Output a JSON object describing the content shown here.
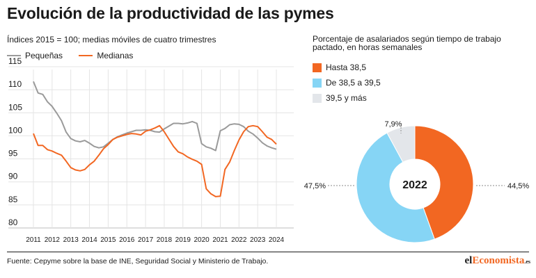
{
  "title": "Evolución de la productividad de las pymes",
  "source": "Fuente: Cepyme sobre la base de INE, Seguridad Social y Ministerio de Trabajo.",
  "logo": {
    "prefix": "el",
    "middle": "Economista",
    "suffix": ".es"
  },
  "colors": {
    "orange": "#f26722",
    "gray": "#9a9a9a",
    "lightblue": "#86d5f5",
    "lightgray": "#e3e6ea"
  },
  "chart_data": [
    {
      "type": "line",
      "subtitle": "Índices 2015 = 100; medias móviles de cuatro trimestres",
      "ylim": [
        80,
        115
      ],
      "yticks": [
        80,
        85,
        90,
        95,
        100,
        105,
        110,
        115
      ],
      "xticks": [
        "2011",
        "2012",
        "2013",
        "2014",
        "2015",
        "2016",
        "2017",
        "2018",
        "2019",
        "2020",
        "2021",
        "2022",
        "2023",
        "2024"
      ],
      "grid": true,
      "legend": "top-left",
      "series": [
        {
          "name": "Pequeñas",
          "color": "#9a9a9a",
          "x": [
            2011,
            2011.25,
            2011.5,
            2011.75,
            2012,
            2012.25,
            2012.5,
            2012.75,
            2013,
            2013.25,
            2013.5,
            2013.75,
            2014,
            2014.25,
            2014.5,
            2014.75,
            2015,
            2015.25,
            2015.5,
            2015.75,
            2016,
            2016.25,
            2016.5,
            2016.75,
            2017,
            2017.25,
            2017.5,
            2017.75,
            2018,
            2018.25,
            2018.5,
            2018.75,
            2019,
            2019.25,
            2019.5,
            2019.75,
            2020,
            2020.25,
            2020.5,
            2020.75,
            2021,
            2021.25,
            2021.5,
            2021.75,
            2022,
            2022.25,
            2022.5,
            2022.75,
            2023,
            2023.25,
            2023.5,
            2023.75,
            2024
          ],
          "values": [
            111.8,
            109.3,
            109.0,
            107.4,
            106.4,
            104.9,
            103.3,
            100.8,
            99.4,
            98.9,
            98.7,
            99.0,
            98.4,
            97.7,
            97.4,
            97.6,
            98.4,
            99.2,
            99.8,
            100.2,
            100.6,
            100.9,
            101.2,
            101.2,
            101.3,
            101.2,
            100.9,
            100.8,
            101.5,
            102.1,
            102.7,
            102.7,
            102.6,
            102.8,
            103.1,
            102.7,
            98.3,
            97.6,
            97.3,
            96.8,
            101.1,
            101.6,
            102.4,
            102.6,
            102.5,
            102.0,
            101.0,
            100.4,
            99.5,
            98.5,
            97.8,
            97.4,
            97.1
          ]
        },
        {
          "name": "Medianas",
          "color": "#f26722",
          "x": [
            2011,
            2011.25,
            2011.5,
            2011.75,
            2012,
            2012.25,
            2012.5,
            2012.75,
            2013,
            2013.25,
            2013.5,
            2013.75,
            2014,
            2014.25,
            2014.5,
            2014.75,
            2015,
            2015.25,
            2015.5,
            2015.75,
            2016,
            2016.25,
            2016.5,
            2016.75,
            2017,
            2017.25,
            2017.5,
            2017.75,
            2018,
            2018.25,
            2018.5,
            2018.75,
            2019,
            2019.25,
            2019.5,
            2019.75,
            2020,
            2020.25,
            2020.5,
            2020.75,
            2021,
            2021.25,
            2021.5,
            2021.75,
            2022,
            2022.25,
            2022.5,
            2022.75,
            2023,
            2023.25,
            2023.5,
            2023.75,
            2024
          ],
          "values": [
            100.5,
            97.9,
            97.9,
            97.0,
            96.7,
            96.2,
            95.8,
            94.5,
            93.1,
            92.6,
            92.4,
            92.7,
            93.7,
            94.5,
            95.8,
            97.2,
            98.1,
            99.2,
            99.7,
            100.0,
            100.3,
            100.5,
            100.4,
            100.2,
            101.0,
            101.3,
            101.7,
            102.2,
            100.9,
            99.3,
            97.7,
            96.5,
            96.1,
            95.4,
            94.9,
            94.5,
            93.8,
            88.5,
            87.4,
            86.8,
            86.9,
            92.7,
            94.3,
            96.8,
            99.1,
            100.9,
            102.0,
            102.2,
            102.0,
            100.9,
            99.7,
            99.2,
            98.2
          ]
        }
      ]
    },
    {
      "type": "pie",
      "subtitle": "Porcentaje de asalariados según tiempo de trabajo pactado, en horas semanales",
      "center_label": "2022",
      "legend": "top-left",
      "slices": [
        {
          "label": "Hasta 38,5",
          "value": 44.5,
          "display": "44,5%",
          "color": "#f26722"
        },
        {
          "label": "De 38,5 a 39,5",
          "value": 47.5,
          "display": "47,5%",
          "color": "#86d5f5"
        },
        {
          "label": "39,5 y más",
          "value": 7.9,
          "display": "7,9%",
          "color": "#e3e6ea"
        }
      ]
    }
  ]
}
